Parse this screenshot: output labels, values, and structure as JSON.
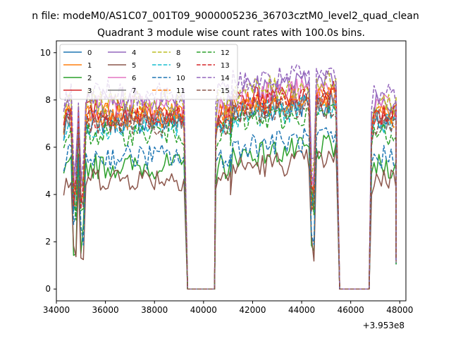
{
  "chart_data": {
    "type": "line",
    "suptitle": "n file: modeM0/AS1C07_001T09_9000005236_36703cztM0_level2_quad_clean",
    "title": "Quadrant 3 module wise count rates with 100.0s bins.",
    "xlabel": "",
    "ylabel": "",
    "x_offset_label": "+3.953e8",
    "xlim": [
      34000,
      48250
    ],
    "ylim": [
      -0.5,
      10.5
    ],
    "xticks": [
      34000,
      36000,
      38000,
      40000,
      42000,
      44000,
      46000,
      48000
    ],
    "xtick_labels": [
      "34000",
      "36000",
      "38000",
      "40000",
      "42000",
      "44000",
      "46000",
      "48000"
    ],
    "yticks": [
      0,
      2,
      4,
      6,
      8,
      10
    ],
    "ytick_labels": [
      "0",
      "2",
      "4",
      "6",
      "8",
      "10"
    ],
    "legend_position": "upper-left",
    "colors": [
      "#1f77b4",
      "#ff7f0e",
      "#2ca02c",
      "#d62728",
      "#9467bd",
      "#8c564b",
      "#e377c2",
      "#7f7f7f",
      "#bcbd22",
      "#17becf"
    ],
    "segments": [
      {
        "start": 34300,
        "end": 39200,
        "dips": [
          34750,
          35050
        ]
      },
      {
        "start": 40500,
        "end": 41100,
        "dips": []
      },
      {
        "start": 41100,
        "end": 45450,
        "dips": [
          44450
        ]
      },
      {
        "start": 46850,
        "end": 47850,
        "dips": []
      }
    ],
    "zero_x": [
      39350,
      40450,
      45550,
      46750
    ],
    "series": [
      {
        "name": "0",
        "level": 7.1,
        "low": 6.4,
        "dash": false
      },
      {
        "name": "1",
        "level": 7.4,
        "low": 6.6,
        "dash": false
      },
      {
        "name": "2",
        "level": 5.2,
        "low": 4.6,
        "dash": false
      },
      {
        "name": "3",
        "level": 7.5,
        "low": 6.9,
        "dash": false
      },
      {
        "name": "4",
        "level": 8.0,
        "low": 7.4,
        "dash": false
      },
      {
        "name": "5",
        "level": 4.7,
        "low": 4.2,
        "dash": false
      },
      {
        "name": "6",
        "level": 7.7,
        "low": 7.0,
        "dash": false
      },
      {
        "name": "7",
        "level": 7.2,
        "low": 6.6,
        "dash": false
      },
      {
        "name": "8",
        "level": 7.9,
        "low": 7.2,
        "dash": true
      },
      {
        "name": "9",
        "level": 6.9,
        "low": 6.4,
        "dash": true
      },
      {
        "name": "10",
        "level": 5.6,
        "low": 5.1,
        "dash": true
      },
      {
        "name": "11",
        "level": 7.3,
        "low": 6.7,
        "dash": true
      },
      {
        "name": "12",
        "level": 6.6,
        "low": 6.1,
        "dash": true
      },
      {
        "name": "13",
        "level": 7.3,
        "low": 6.7,
        "dash": true
      },
      {
        "name": "14",
        "level": 8.3,
        "low": 7.6,
        "dash": true
      },
      {
        "name": "15",
        "level": 7.0,
        "low": 6.4,
        "dash": true
      }
    ]
  }
}
